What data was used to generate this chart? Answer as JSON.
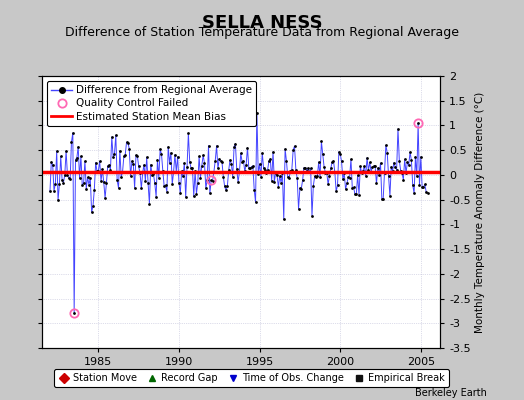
{
  "title": "SELLA NESS",
  "subtitle": "Difference of Station Temperature Data from Regional Average",
  "ylabel": "Monthly Temperature Anomaly Difference (°C)",
  "xlabel_years": [
    1985,
    1990,
    1995,
    2000,
    2005
  ],
  "xlim": [
    1981.5,
    2006.2
  ],
  "ylim": [
    -3.5,
    2.0
  ],
  "yticks": [
    -3.5,
    -3.0,
    -2.5,
    -2.0,
    -1.5,
    -1.0,
    -0.5,
    0.0,
    0.5,
    1.0,
    1.5,
    2.0
  ],
  "bias_value": 0.05,
  "line_color": "#4444FF",
  "dot_color": "#000000",
  "bias_color": "#FF0000",
  "qc_color": "#FF69B4",
  "background_color": "#C8C8C8",
  "plot_bg_color": "#FFFFFF",
  "watermark": "Berkeley Earth",
  "title_fontsize": 13,
  "subtitle_fontsize": 9,
  "tick_fontsize": 8,
  "legend1_fontsize": 7.5,
  "legend2_fontsize": 7
}
